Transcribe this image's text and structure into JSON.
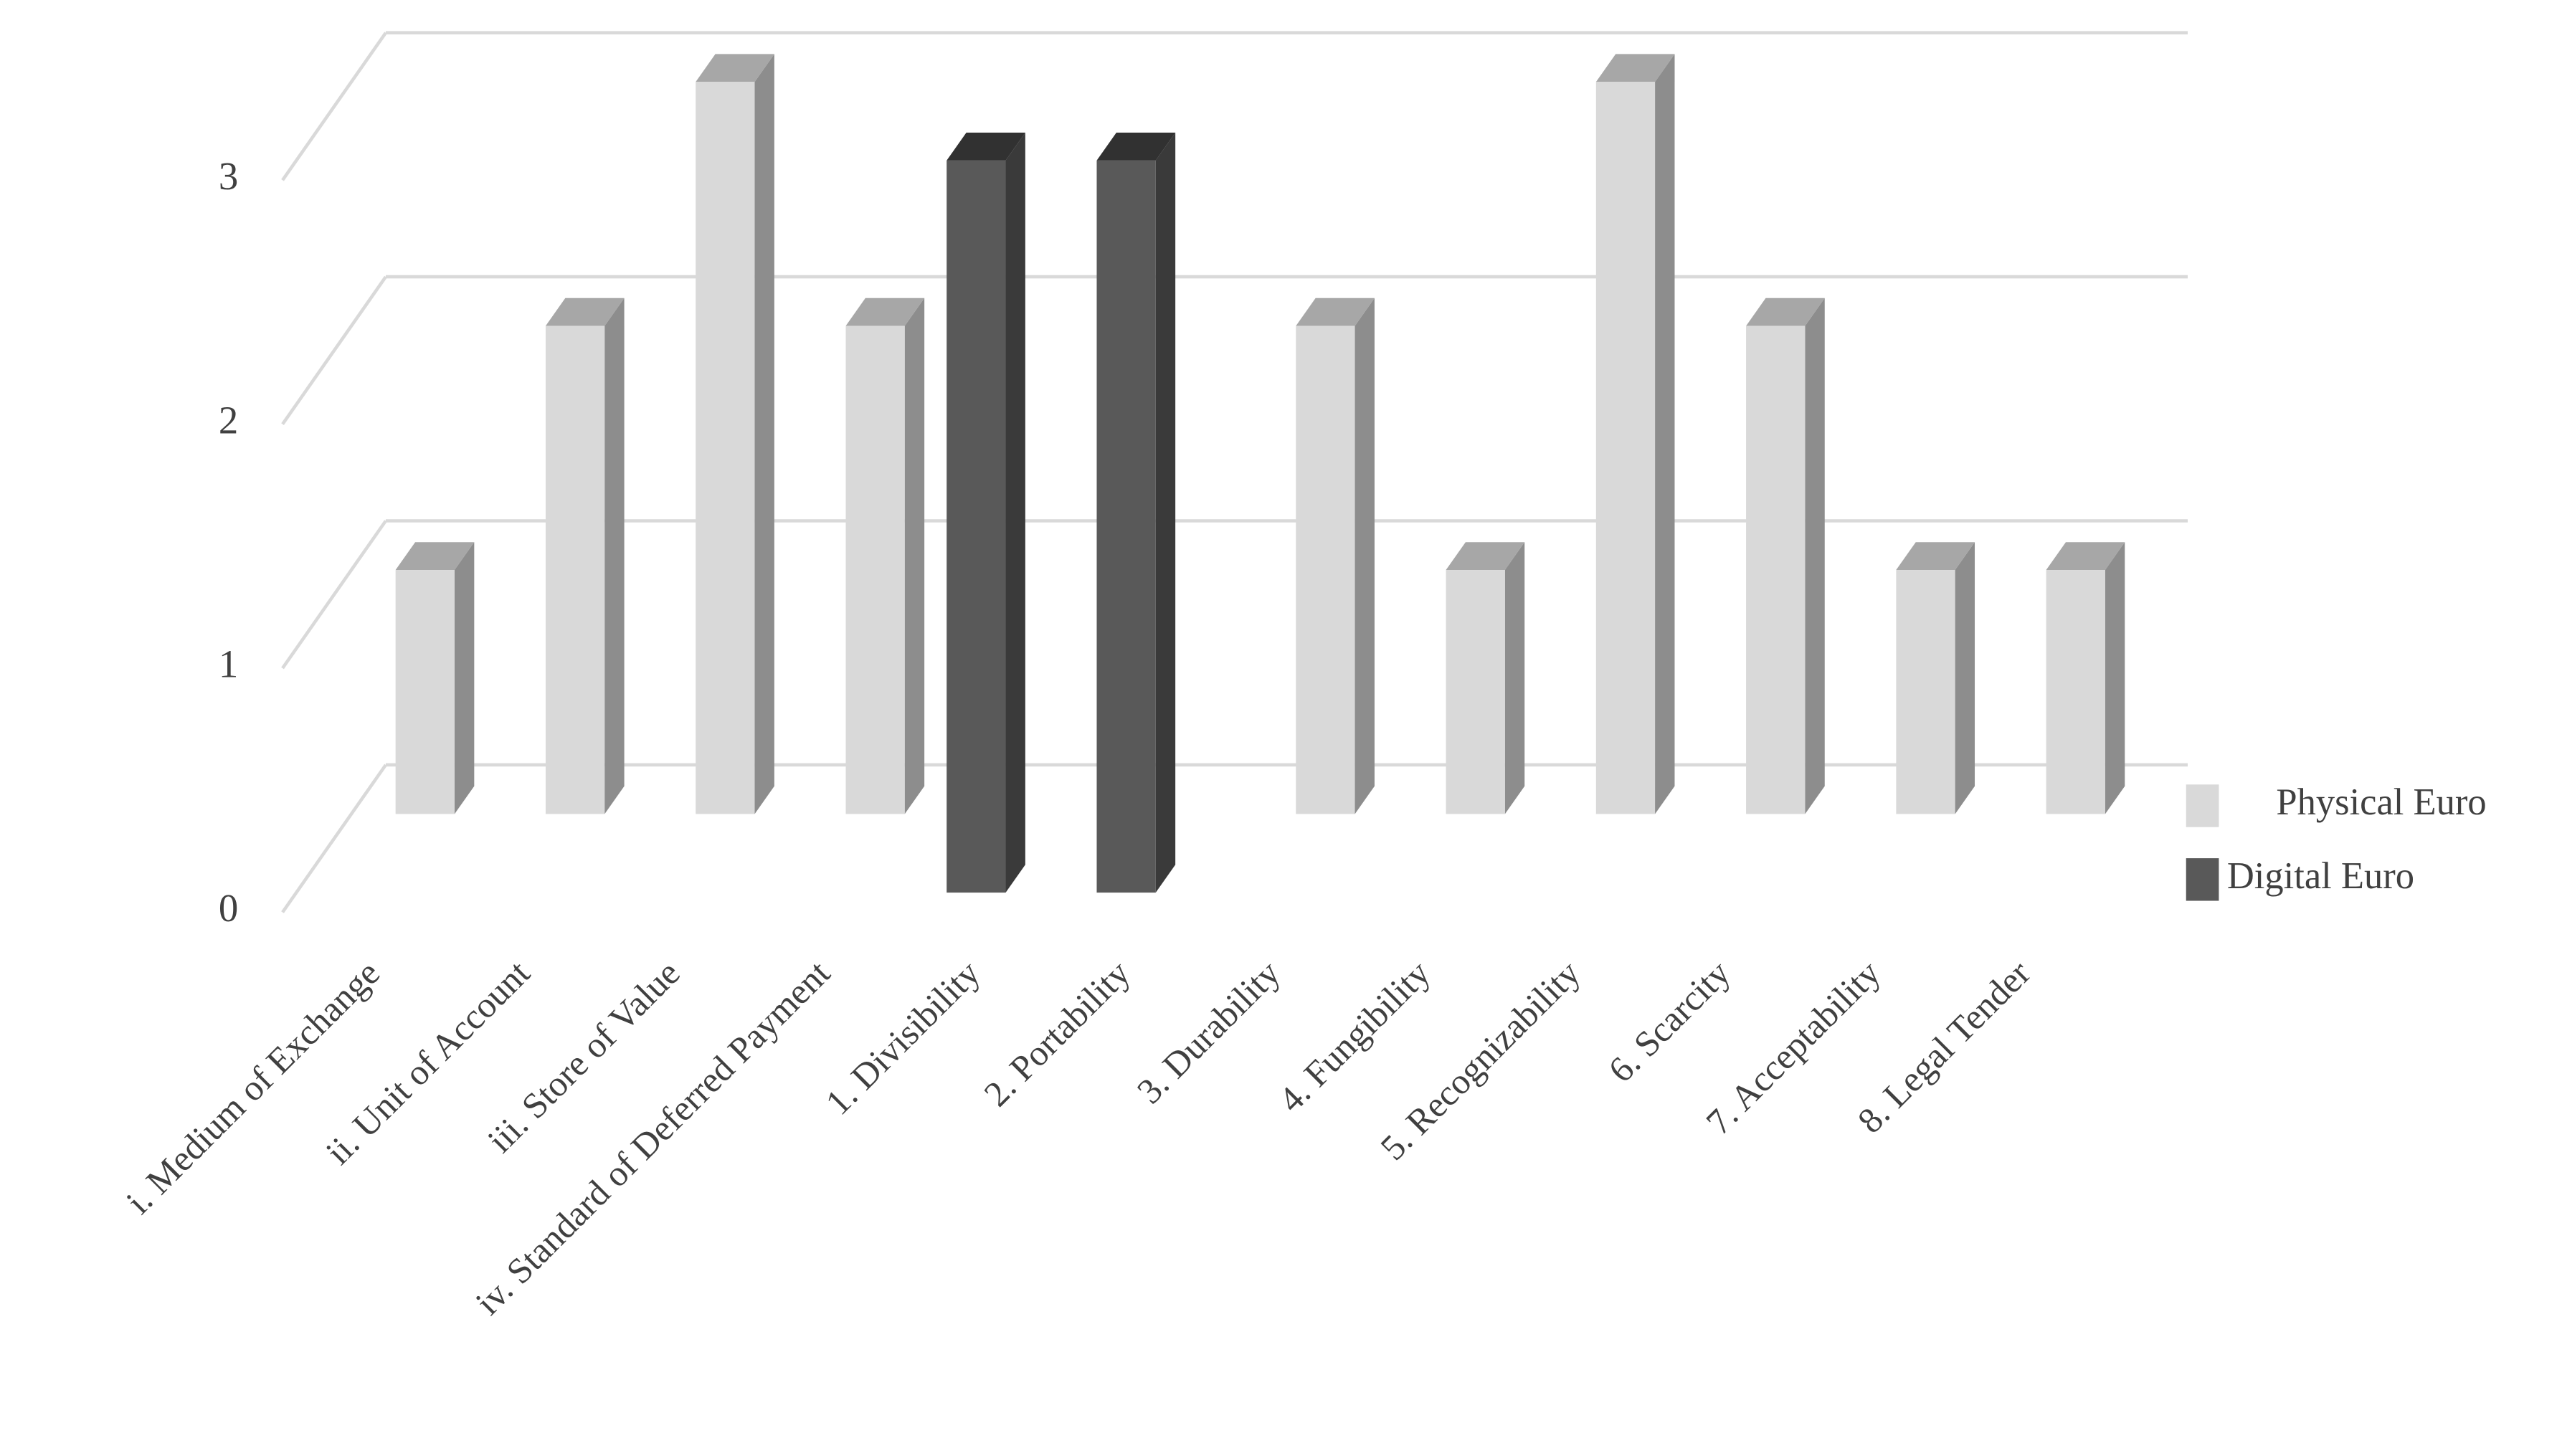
{
  "chart_data": {
    "type": "bar3d",
    "categories": [
      "i. Medium of Exchange",
      "ii. Unit of Account",
      "iii. Store of Value",
      "iv. Standard of Deferred Payment",
      "1. Divisibility",
      "2. Portability",
      "3. Durability",
      "4. Fungibility",
      "5. Recognizability",
      "6. Scarcity",
      "7. Acceptability",
      "8. Legal Tender"
    ],
    "series": [
      {
        "name": "Physical Euro",
        "color": "#d9d9d9",
        "values": [
          1,
          2,
          3,
          2,
          null,
          null,
          2,
          1,
          3,
          2,
          1,
          1
        ]
      },
      {
        "name": "Digital Euro",
        "color": "#595959",
        "values": [
          null,
          null,
          null,
          null,
          3,
          3,
          null,
          null,
          null,
          null,
          null,
          null
        ]
      }
    ],
    "ylim": [
      0,
      3
    ],
    "yticks": [
      0,
      1,
      2,
      3
    ],
    "grid": true
  }
}
